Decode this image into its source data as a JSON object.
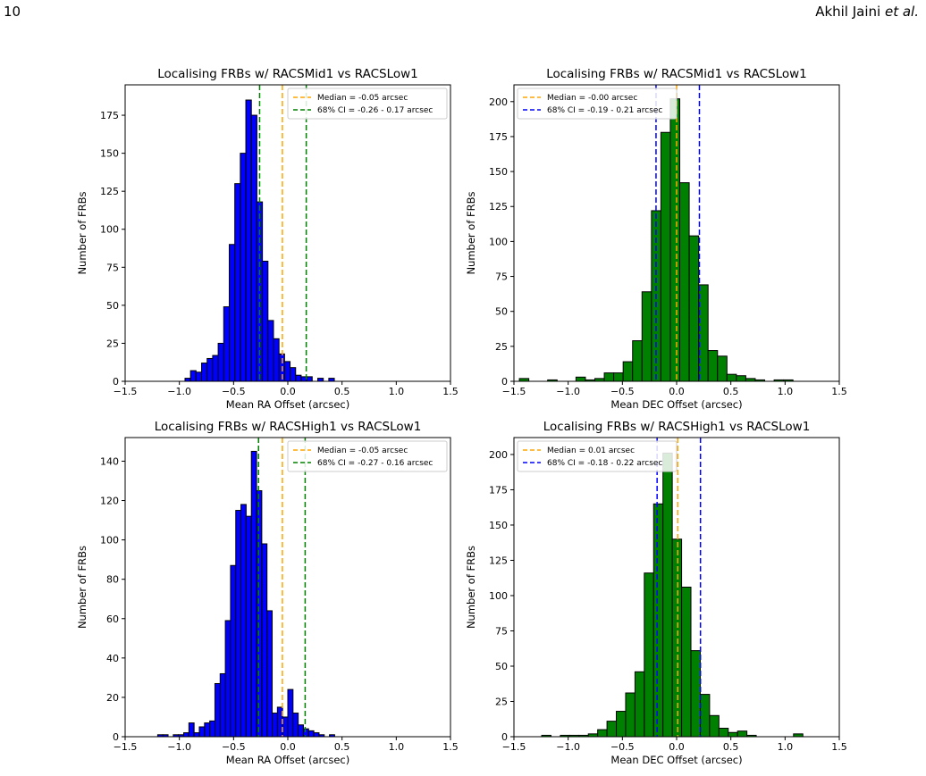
{
  "header": {
    "page_number": "10",
    "authors": "Akhil Jaini",
    "authors_suffix": "et al."
  },
  "colors": {
    "blue_bars": "#0000ff",
    "green_bars": "#008000",
    "median_line": "#ffa500",
    "ci_green": "#008000",
    "ci_blue": "#0000ff"
  },
  "chart_data": [
    {
      "type": "bar",
      "title": "Localising FRBs w/ RACSMid1 vs RACSLow1",
      "xlabel": "Mean RA Offset (arcsec)",
      "ylabel": "Number of FRBs",
      "xlim": [
        -1.5,
        1.5
      ],
      "ylim": [
        0,
        195
      ],
      "xticks": [
        "−1.5",
        "−1.0",
        "−0.5",
        "0.0",
        "0.5",
        "1.0",
        "1.5"
      ],
      "xtick_values": [
        -1.5,
        -1.0,
        -0.5,
        0.0,
        0.5,
        1.0,
        1.5
      ],
      "yticks": [
        "0",
        "25",
        "50",
        "75",
        "100",
        "125",
        "150",
        "175"
      ],
      "ytick_values": [
        0,
        25,
        50,
        75,
        100,
        125,
        150,
        175
      ],
      "bar_color": "#0000ff",
      "bins": {
        "edges": [
          -1.05,
          -0.999,
          -0.948,
          -0.897,
          -0.846,
          -0.795,
          -0.744,
          -0.693,
          -0.642,
          -0.591,
          -0.54,
          -0.489,
          -0.438,
          -0.387,
          -0.336,
          -0.285,
          -0.234,
          -0.183,
          -0.132,
          -0.081,
          -0.03,
          0.021,
          0.072,
          0.123,
          0.174,
          0.225,
          0.276,
          0.327,
          0.378,
          0.429,
          0.48,
          0.531,
          0.582,
          0.633,
          0.684,
          0.735,
          0.786,
          0.837,
          0.888,
          0.939,
          0.99,
          1.041,
          1.092,
          1.143,
          1.194
        ],
        "counts": [
          0,
          0,
          2,
          7,
          6,
          12,
          15,
          17,
          25,
          49,
          90,
          130,
          150,
          185,
          175,
          118,
          79,
          40,
          28,
          18,
          13,
          9,
          4,
          3,
          3,
          0,
          2,
          0,
          2,
          0,
          0,
          0,
          0,
          0,
          0,
          0,
          0,
          0,
          0,
          0,
          0,
          0,
          0,
          0
        ]
      },
      "median_line": {
        "value": -0.05,
        "label": "Median = -0.05 arcsec",
        "color": "#ffa500"
      },
      "ci_lines": {
        "values": [
          -0.26,
          0.17
        ],
        "label": "68% CI = -0.26 - 0.17 arcsec",
        "color": "#008000"
      },
      "legend_position": "top-right"
    },
    {
      "type": "bar",
      "title": "Localising FRBs w/ RACSMid1 vs RACSLow1",
      "xlabel": "Mean DEC Offset (arcsec)",
      "ylabel": "Number of FRBs",
      "xlim": [
        -1.5,
        1.5
      ],
      "ylim": [
        0,
        212
      ],
      "xticks": [
        "−1.5",
        "−1.0",
        "−0.5",
        "0.0",
        "0.5",
        "1.0",
        "1.5"
      ],
      "xtick_values": [
        -1.5,
        -1.0,
        -0.5,
        0.0,
        0.5,
        1.0,
        1.5
      ],
      "yticks": [
        "0",
        "25",
        "50",
        "75",
        "100",
        "125",
        "150",
        "175",
        "200"
      ],
      "ytick_values": [
        0,
        25,
        50,
        75,
        100,
        125,
        150,
        175,
        200
      ],
      "bar_color": "#008000",
      "bins": {
        "edges": [
          -1.45,
          -1.363,
          -1.276,
          -1.189,
          -1.102,
          -1.015,
          -0.928,
          -0.841,
          -0.754,
          -0.667,
          -0.58,
          -0.493,
          -0.406,
          -0.319,
          -0.232,
          -0.145,
          -0.058,
          0.029,
          0.116,
          0.203,
          0.29,
          0.377,
          0.464,
          0.551,
          0.638,
          0.725,
          0.812,
          0.899,
          0.986,
          1.073,
          1.16
        ],
        "counts": [
          2,
          0,
          0,
          1,
          0,
          0,
          3,
          1,
          2,
          6,
          6,
          14,
          29,
          64,
          122,
          178,
          202,
          142,
          104,
          69,
          22,
          18,
          5,
          4,
          2,
          1,
          0,
          1,
          1,
          0
        ]
      },
      "median_line": {
        "value": 0.0,
        "label": "Median = -0.00 arcsec",
        "color": "#ffa500"
      },
      "ci_lines": {
        "values": [
          -0.19,
          0.21
        ],
        "label": "68% CI = -0.19 - 0.21 arcsec",
        "color": "#0000ff"
      },
      "legend_position": "top-left"
    },
    {
      "type": "bar",
      "title": "Localising FRBs w/ RACSHigh1 vs RACSLow1",
      "xlabel": "Mean RA Offset (arcsec)",
      "ylabel": "Number of FRBs",
      "xlim": [
        -1.5,
        1.5
      ],
      "ylim": [
        0,
        152
      ],
      "xticks": [
        "−1.5",
        "−1.0",
        "−0.5",
        "0.0",
        "0.5",
        "1.0",
        "1.5"
      ],
      "xtick_values": [
        -1.5,
        -1.0,
        -0.5,
        0.0,
        0.5,
        1.0,
        1.5
      ],
      "yticks": [
        "0",
        "20",
        "40",
        "60",
        "80",
        "100",
        "120",
        "140"
      ],
      "ytick_values": [
        0,
        20,
        40,
        60,
        80,
        100,
        120,
        140
      ],
      "bar_color": "#0000ff",
      "bins": {
        "edges": [
          -1.2,
          -1.152,
          -1.104,
          -1.056,
          -1.008,
          -0.96,
          -0.912,
          -0.864,
          -0.816,
          -0.768,
          -0.72,
          -0.672,
          -0.624,
          -0.576,
          -0.528,
          -0.48,
          -0.432,
          -0.384,
          -0.336,
          -0.288,
          -0.24,
          -0.192,
          -0.144,
          -0.096,
          -0.048,
          0.0,
          0.048,
          0.096,
          0.144,
          0.192,
          0.24,
          0.288,
          0.336,
          0.384,
          0.432,
          0.48,
          0.528,
          0.576,
          0.624,
          0.672,
          0.72,
          0.768,
          0.816,
          0.864,
          0.912,
          0.96
        ],
        "counts": [
          1,
          1,
          0,
          1,
          1,
          2,
          7,
          2,
          5,
          7,
          8,
          27,
          32,
          59,
          87,
          115,
          118,
          112,
          145,
          125,
          98,
          64,
          12,
          15,
          10,
          24,
          12,
          6,
          4,
          3,
          2,
          1,
          0,
          1,
          0,
          0,
          0,
          0,
          0,
          0,
          0,
          0,
          0,
          0,
          0
        ]
      },
      "median_line": {
        "value": -0.05,
        "label": "Median = -0.05 arcsec",
        "color": "#ffa500"
      },
      "ci_lines": {
        "values": [
          -0.27,
          0.16
        ],
        "label": "68% CI = -0.27 - 0.16 arcsec",
        "color": "#008000"
      },
      "legend_position": "top-right"
    },
    {
      "type": "bar",
      "title": "Localising FRBs w/ RACSHigh1 vs RACSLow1",
      "xlabel": "Mean DEC Offset (arcsec)",
      "ylabel": "Number of FRBs",
      "xlim": [
        -1.5,
        1.5
      ],
      "ylim": [
        0,
        212
      ],
      "xticks": [
        "−1.5",
        "−1.0",
        "−0.5",
        "0.0",
        "0.5",
        "1.0",
        "1.5"
      ],
      "xtick_values": [
        -1.5,
        -1.0,
        -0.5,
        0.0,
        0.5,
        1.0,
        1.5
      ],
      "yticks": [
        "0",
        "25",
        "50",
        "75",
        "100",
        "125",
        "150",
        "175",
        "200"
      ],
      "ytick_values": [
        0,
        25,
        50,
        75,
        100,
        125,
        150,
        175,
        200
      ],
      "bar_color": "#008000",
      "bins": {
        "edges": [
          -1.33,
          -1.244,
          -1.158,
          -1.072,
          -0.986,
          -0.9,
          -0.814,
          -0.728,
          -0.642,
          -0.556,
          -0.47,
          -0.384,
          -0.298,
          -0.212,
          -0.126,
          -0.04,
          0.046,
          0.132,
          0.218,
          0.304,
          0.39,
          0.476,
          0.562,
          0.648,
          0.734,
          0.82,
          0.906,
          0.992,
          1.078,
          1.164
        ],
        "counts": [
          0,
          1,
          0,
          1,
          1,
          1,
          2,
          5,
          11,
          18,
          31,
          46,
          116,
          165,
          201,
          140,
          106,
          61,
          30,
          15,
          6,
          3,
          4,
          1,
          0,
          0,
          0,
          0,
          2
        ]
      },
      "median_line": {
        "value": 0.01,
        "label": "Median = 0.01 arcsec",
        "color": "#ffa500"
      },
      "ci_lines": {
        "values": [
          -0.18,
          0.22
        ],
        "label": "68% CI = -0.18 - 0.22 arcsec",
        "color": "#0000ff"
      },
      "legend_position": "top-left"
    }
  ]
}
